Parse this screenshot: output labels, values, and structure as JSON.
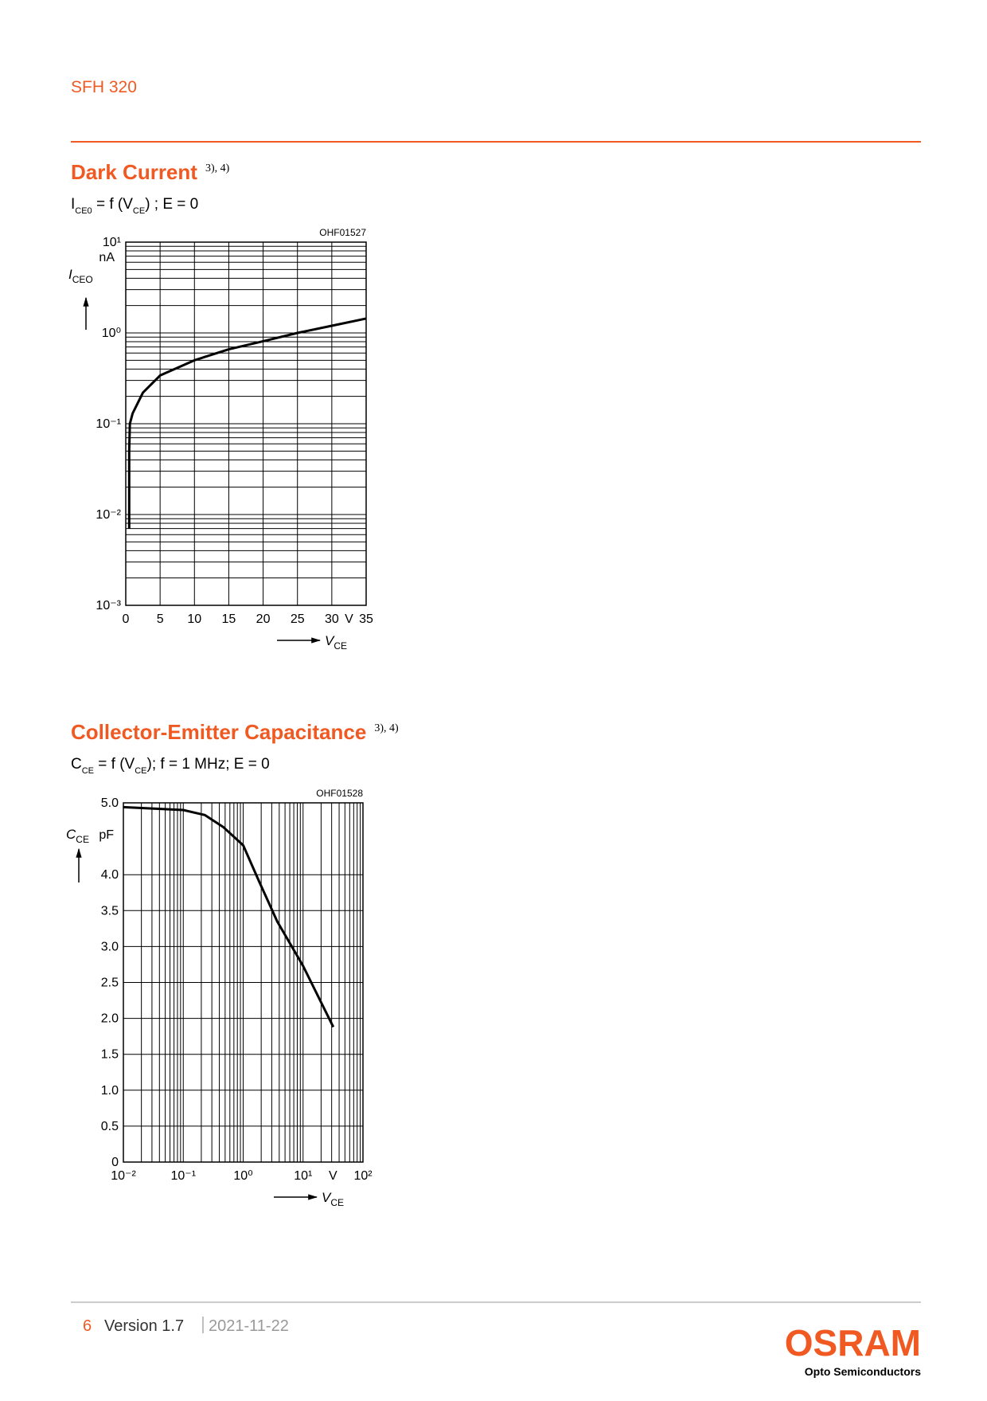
{
  "header": {
    "product": "SFH 320"
  },
  "sections": [
    {
      "title": "Dark Current",
      "note": "3), 4)",
      "formula": [
        "I",
        "CE0",
        " = f (V",
        "CE",
        ") ; E = 0"
      ]
    },
    {
      "title": "Collector-Emitter Capacitance",
      "note": "3), 4)",
      "formula": [
        "C",
        "CE",
        " = f (V",
        "CE",
        "); f = 1 MHz; E = 0"
      ]
    }
  ],
  "chart_data": [
    {
      "type": "line",
      "figure_code": "OHF01527",
      "x": [
        0.5,
        0.5,
        0.6,
        1,
        2.5,
        5,
        10,
        15,
        20,
        25,
        30,
        35
      ],
      "values": [
        0.007,
        0.05,
        0.1,
        0.13,
        0.22,
        0.34,
        0.5,
        0.66,
        0.81,
        1.0,
        1.2,
        1.44
      ],
      "color": "#000000",
      "xlim": [
        0,
        35
      ],
      "xticks": [
        0,
        5,
        10,
        15,
        20,
        25,
        30,
        35
      ],
      "ylim": [
        0.001,
        10
      ],
      "yscale": "log",
      "yticks": [
        {
          "value": 0.001,
          "label": "10⁻³"
        },
        {
          "value": 0.01,
          "label": "10⁻²"
        },
        {
          "value": 0.1,
          "label": "10⁻¹"
        },
        {
          "value": 1,
          "label": "10⁰"
        },
        {
          "value": 10,
          "label": "10¹"
        }
      ],
      "xlabel": "V",
      "xlabel_sub": "CE",
      "xunit": "V",
      "ylabel": "I",
      "ylabel_sub": "CEO",
      "yunit": "nA",
      "grid": true
    },
    {
      "type": "line",
      "figure_code": "OHF01528",
      "x": [
        0.01,
        0.1,
        0.23,
        0.47,
        1,
        1.86,
        3.7,
        10,
        32
      ],
      "values": [
        4.94,
        4.9,
        4.83,
        4.66,
        4.41,
        3.9,
        3.35,
        2.73,
        1.88
      ],
      "color": "#000000",
      "xlim": [
        0.01,
        100
      ],
      "xscale": "log",
      "xticks": [
        {
          "value": 0.01,
          "label": "10⁻²"
        },
        {
          "value": 0.1,
          "label": "10⁻¹"
        },
        {
          "value": 1,
          "label": "10⁰"
        },
        {
          "value": 10,
          "label": "10¹"
        },
        {
          "value": 100,
          "label": "10²"
        }
      ],
      "ylim": [
        0,
        5
      ],
      "yticks": [
        0,
        0.5,
        {
          "value": 1,
          "label": "1.0"
        },
        1.5,
        {
          "value": 2,
          "label": "2.0"
        },
        2.5,
        {
          "value": 3,
          "label": "3.0"
        },
        3.5,
        {
          "value": 4,
          "label": "4.0"
        },
        {
          "value": 5,
          "label": "5.0"
        }
      ],
      "xlabel": "V",
      "xlabel_sub": "CE",
      "xunit": "V",
      "ylabel": "C",
      "ylabel_sub": "CE",
      "yunit": "pF",
      "grid": true
    }
  ],
  "footer": {
    "page": "6",
    "version": "Version 1.7",
    "date": "2021-11-22"
  },
  "logo": {
    "name": "OSRAM",
    "tagline": "Opto Semiconductors"
  }
}
